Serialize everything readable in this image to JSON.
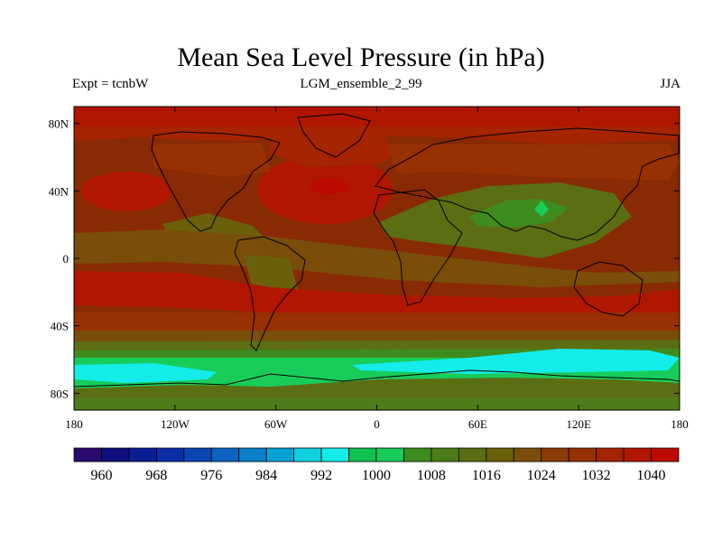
{
  "title": "Mean Sea Level Pressure (in hPa)",
  "subtitle_left": "Expt = tcnbW",
  "subtitle_center": "LGM_ensemble_2_99",
  "subtitle_right": "JJA",
  "lat_ticks": [
    "80N",
    "40N",
    "0",
    "40S",
    "80S"
  ],
  "lon_ticks": [
    "180",
    "120W",
    "60W",
    "0",
    "60E",
    "120E",
    "180"
  ],
  "colorbar": {
    "labels": [
      "960",
      "968",
      "976",
      "984",
      "992",
      "1000",
      "1008",
      "1016",
      "1024",
      "1032",
      "1040"
    ],
    "colors": [
      "#2a0a6e",
      "#0f0e7e",
      "#0a1e96",
      "#0a2ea8",
      "#0a46b4",
      "#0a64c0",
      "#0a7fca",
      "#0aa2d6",
      "#12d0e0",
      "#14ecea",
      "#10c050",
      "#18cc5a",
      "#3f8c1e",
      "#4e7c18",
      "#5c6e12",
      "#6a600c",
      "#7a4e08",
      "#8a3c04",
      "#983002",
      "#a42400",
      "#b01600",
      "#bc0a00"
    ]
  },
  "colors": {
    "land_outline": "#000000",
    "base_fill": "#882a04"
  },
  "pressure_bands": [
    {
      "level": "1036",
      "color": "#b01600"
    },
    {
      "level": "1028",
      "color": "#983002"
    },
    {
      "level": "1020",
      "color": "#7a4e08"
    },
    {
      "level": "1014",
      "color": "#5c6e12"
    },
    {
      "level": "1010",
      "color": "#3f8c1e"
    },
    {
      "level": "1004",
      "color": "#18cc5a"
    },
    {
      "level": "998",
      "color": "#14ecea"
    }
  ]
}
